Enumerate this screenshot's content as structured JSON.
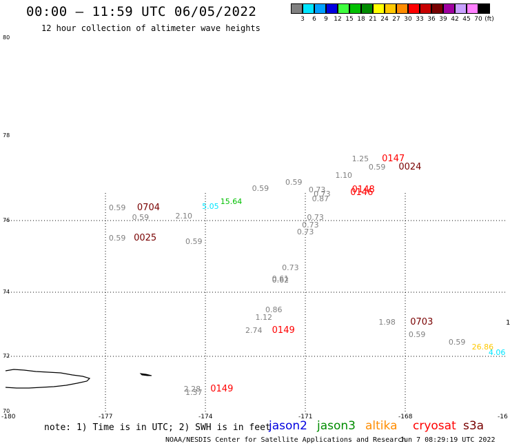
{
  "header": {
    "title": "00:00 – 11:59 UTC 06/05/2022",
    "subtitle": "12 hour collection of altimeter wave heights"
  },
  "colorbar": {
    "unit": "(ft)",
    "bins": [
      {
        "label": "3",
        "color": "#808080"
      },
      {
        "label": "6",
        "color": "#00e5ff"
      },
      {
        "label": "9",
        "color": "#00a0ff"
      },
      {
        "label": "12",
        "color": "#0000e0"
      },
      {
        "label": "15",
        "color": "#40ff40"
      },
      {
        "label": "18",
        "color": "#00c000"
      },
      {
        "label": "21",
        "color": "#008c00"
      },
      {
        "label": "24",
        "color": "#ffff00"
      },
      {
        "label": "27",
        "color": "#ffc800"
      },
      {
        "label": "30",
        "color": "#ff8c00"
      },
      {
        "label": "33",
        "color": "#ff0000"
      },
      {
        "label": "36",
        "color": "#c80000"
      },
      {
        "label": "39",
        "color": "#780000"
      },
      {
        "label": "42",
        "color": "#a000a0"
      },
      {
        "label": "45",
        "color": "#c8a0ff"
      },
      {
        "label": "70",
        "color": "#ff80ff"
      },
      {
        "label": "",
        "color": "#000000"
      }
    ]
  },
  "axes": {
    "lat_labels": [
      "80",
      "78",
      "76",
      "74",
      "72",
      "70"
    ],
    "lon_labels": [
      "-180",
      "-177",
      "-174",
      "-171",
      "-168",
      "-16"
    ]
  },
  "observations": [
    {
      "text": "1.25",
      "color": "#808080",
      "kind": "swh",
      "lon": -169.6,
      "lat": 77.45
    },
    {
      "text": "0147",
      "color": "#ff0000",
      "kind": "time",
      "lon": -168.7,
      "lat": 77.45
    },
    {
      "text": "0.59",
      "color": "#808080",
      "kind": "swh",
      "lon": -169.1,
      "lat": 77.25
    },
    {
      "text": "0024",
      "color": "#780000",
      "kind": "time",
      "lon": -168.2,
      "lat": 77.25
    },
    {
      "text": "1.10",
      "color": "#808080",
      "kind": "swh",
      "lon": -170.1,
      "lat": 77.05
    },
    {
      "text": "0.59",
      "color": "#808080",
      "kind": "swh",
      "lon": -171.6,
      "lat": 76.9
    },
    {
      "text": "0.59",
      "color": "#808080",
      "kind": "swh",
      "lon": -172.6,
      "lat": 76.75
    },
    {
      "text": "0.73",
      "color": "#808080",
      "kind": "swh",
      "lon": -170.9,
      "lat": 76.72
    },
    {
      "text": "0.73",
      "color": "#808080",
      "kind": "swh",
      "lon": -170.75,
      "lat": 76.62
    },
    {
      "text": "0148",
      "color": "#ff0000",
      "kind": "time",
      "lon": -169.6,
      "lat": 76.72
    },
    {
      "text": "0146",
      "color": "#ff0000",
      "kind": "time",
      "lon": -169.65,
      "lat": 76.65
    },
    {
      "text": "0.87",
      "color": "#808080",
      "kind": "swh",
      "lon": -170.8,
      "lat": 76.5
    },
    {
      "text": "15.64",
      "color": "#00c000",
      "kind": "swh",
      "lon": -173.55,
      "lat": 76.44
    },
    {
      "text": "5.05",
      "color": "#00e5ff",
      "kind": "swh",
      "lon": -174.1,
      "lat": 76.33
    },
    {
      "text": "0.59",
      "color": "#808080",
      "kind": "swh",
      "lon": -176.9,
      "lat": 76.3
    },
    {
      "text": "0704",
      "color": "#780000",
      "kind": "time",
      "lon": -176.05,
      "lat": 76.3
    },
    {
      "text": "2.10",
      "color": "#808080",
      "kind": "swh",
      "lon": -174.9,
      "lat": 76.09
    },
    {
      "text": "0.59",
      "color": "#808080",
      "kind": "swh",
      "lon": -176.2,
      "lat": 76.07
    },
    {
      "text": "0.73",
      "color": "#808080",
      "kind": "swh",
      "lon": -170.95,
      "lat": 76.07
    },
    {
      "text": "0.73",
      "color": "#808080",
      "kind": "swh",
      "lon": -171.1,
      "lat": 75.87
    },
    {
      "text": "0.73",
      "color": "#808080",
      "kind": "swh",
      "lon": -171.25,
      "lat": 75.67
    },
    {
      "text": "0.59",
      "color": "#808080",
      "kind": "swh",
      "lon": -176.9,
      "lat": 75.5
    },
    {
      "text": "0025",
      "color": "#780000",
      "kind": "time",
      "lon": -176.15,
      "lat": 75.5
    },
    {
      "text": "0.59",
      "color": "#808080",
      "kind": "swh",
      "lon": -174.6,
      "lat": 75.4
    },
    {
      "text": "0.73",
      "color": "#808080",
      "kind": "swh",
      "lon": -171.7,
      "lat": 74.68
    },
    {
      "text": "0.61",
      "color": "#808080",
      "kind": "swh",
      "lon": -172.0,
      "lat": 74.37
    },
    {
      "text": "0.62",
      "color": "#808080",
      "kind": "swh",
      "lon": -172.0,
      "lat": 74.32
    },
    {
      "text": "0.86",
      "color": "#808080",
      "kind": "swh",
      "lon": -172.2,
      "lat": 73.45
    },
    {
      "text": "1.12",
      "color": "#808080",
      "kind": "swh",
      "lon": -172.5,
      "lat": 73.2
    },
    {
      "text": "1.98",
      "color": "#808080",
      "kind": "swh",
      "lon": -168.8,
      "lat": 73.05
    },
    {
      "text": "0703",
      "color": "#780000",
      "kind": "time",
      "lon": -167.85,
      "lat": 73.05
    },
    {
      "text": "2.74",
      "color": "#808080",
      "kind": "swh",
      "lon": -172.8,
      "lat": 72.8
    },
    {
      "text": "0149",
      "color": "#ff0000",
      "kind": "time",
      "lon": -172.0,
      "lat": 72.8
    },
    {
      "text": "0.59",
      "color": "#808080",
      "kind": "swh",
      "lon": -167.9,
      "lat": 72.67
    },
    {
      "text": "0.59",
      "color": "#808080",
      "kind": "swh",
      "lon": -166.7,
      "lat": 72.42
    },
    {
      "text": "26.86",
      "color": "#ffc800",
      "kind": "swh",
      "lon": -166.0,
      "lat": 72.27
    },
    {
      "text": "4.06",
      "color": "#00e5ff",
      "kind": "swh",
      "lon": -165.5,
      "lat": 72.1
    },
    {
      "text": "2.28",
      "color": "#808080",
      "kind": "swh",
      "lon": -174.65,
      "lat": 70.79
    },
    {
      "text": "1.37",
      "color": "#808080",
      "kind": "swh",
      "lon": -174.6,
      "lat": 70.67
    },
    {
      "text": "0149",
      "color": "#ff0000",
      "kind": "time",
      "lon": -173.85,
      "lat": 70.79
    }
  ],
  "edge_mark": "1",
  "footer": {
    "note": "note: 1) Time is in UTC; 2) SWH is in feet",
    "missions": [
      {
        "text": "jason2",
        "color": "#0000e0"
      },
      {
        "text": "jason3",
        "color": "#008c00"
      },
      {
        "text": "altika",
        "color": "#ff8c00"
      },
      {
        "text": "cryosat",
        "color": "#ff0000"
      },
      {
        "text": "s3a",
        "color": "#780000"
      }
    ],
    "credit": "NOAA/NESDIS Center for Satellite Applications and Research",
    "timestamp": "Jun  7 08:29:19 UTC 2022"
  }
}
